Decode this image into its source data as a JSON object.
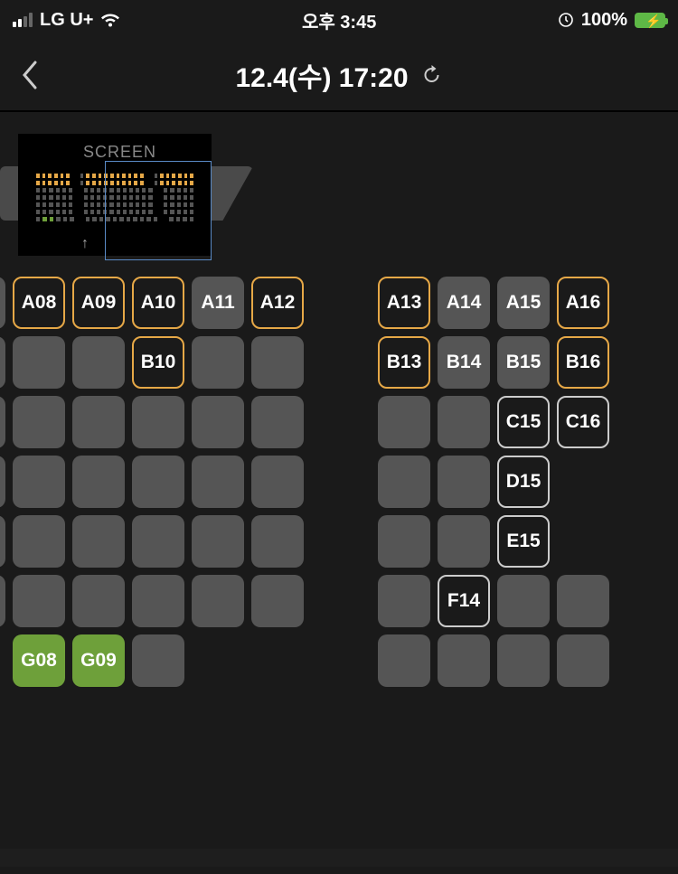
{
  "status": {
    "carrier": "LG U+",
    "time": "오후 3:45",
    "battery_pct": "100%"
  },
  "nav": {
    "title": "12.4(수) 17:20"
  },
  "minimap": {
    "label": "SCREEN",
    "arrow": "↑"
  },
  "colors": {
    "gold": "#e6a847",
    "selected": "#6ea03a",
    "seat_bg": "#555555",
    "white_border": "#cccccc"
  },
  "seats": {
    "rows": [
      [
        {
          "l": "",
          "s": "empty"
        },
        {
          "l": "A08",
          "s": "gold"
        },
        {
          "l": "A09",
          "s": "gold"
        },
        {
          "l": "A10",
          "s": "gold"
        },
        {
          "l": "A11",
          "s": "empty"
        },
        {
          "l": "A12",
          "s": "gold"
        },
        {
          "aisle": true
        },
        {
          "l": "A13",
          "s": "gold"
        },
        {
          "l": "A14",
          "s": "empty"
        },
        {
          "l": "A15",
          "s": "empty"
        },
        {
          "l": "A16",
          "s": "gold"
        }
      ],
      [
        {
          "l": "",
          "s": "empty"
        },
        {
          "l": "",
          "s": "empty"
        },
        {
          "l": "",
          "s": "empty"
        },
        {
          "l": "B10",
          "s": "gold"
        },
        {
          "l": "",
          "s": "empty"
        },
        {
          "l": "",
          "s": "empty"
        },
        {
          "aisle": true
        },
        {
          "l": "B13",
          "s": "gold"
        },
        {
          "l": "B14",
          "s": "empty"
        },
        {
          "l": "B15",
          "s": "empty"
        },
        {
          "l": "B16",
          "s": "gold"
        }
      ],
      [
        {
          "l": "",
          "s": "empty"
        },
        {
          "l": "",
          "s": "empty"
        },
        {
          "l": "",
          "s": "empty"
        },
        {
          "l": "",
          "s": "empty"
        },
        {
          "l": "",
          "s": "empty"
        },
        {
          "l": "",
          "s": "empty"
        },
        {
          "aisle": true
        },
        {
          "l": "",
          "s": "empty"
        },
        {
          "l": "",
          "s": "empty"
        },
        {
          "l": "C15",
          "s": "white"
        },
        {
          "l": "C16",
          "s": "white"
        }
      ],
      [
        {
          "l": "",
          "s": "empty"
        },
        {
          "l": "",
          "s": "empty"
        },
        {
          "l": "",
          "s": "empty"
        },
        {
          "l": "",
          "s": "empty"
        },
        {
          "l": "",
          "s": "empty"
        },
        {
          "l": "",
          "s": "empty"
        },
        {
          "aisle": true
        },
        {
          "l": "",
          "s": "empty"
        },
        {
          "l": "",
          "s": "empty"
        },
        {
          "l": "D15",
          "s": "white"
        },
        {
          "l": "",
          "s": "hidden"
        }
      ],
      [
        {
          "l": "",
          "s": "empty"
        },
        {
          "l": "",
          "s": "empty"
        },
        {
          "l": "",
          "s": "empty"
        },
        {
          "l": "",
          "s": "empty"
        },
        {
          "l": "",
          "s": "empty"
        },
        {
          "l": "",
          "s": "empty"
        },
        {
          "aisle": true
        },
        {
          "l": "",
          "s": "empty"
        },
        {
          "l": "",
          "s": "empty"
        },
        {
          "l": "E15",
          "s": "white"
        },
        {
          "l": "",
          "s": "hidden"
        }
      ],
      [
        {
          "l": "",
          "s": "empty"
        },
        {
          "l": "",
          "s": "empty"
        },
        {
          "l": "",
          "s": "empty"
        },
        {
          "l": "",
          "s": "empty"
        },
        {
          "l": "",
          "s": "empty"
        },
        {
          "l": "",
          "s": "empty"
        },
        {
          "aisle": true
        },
        {
          "l": "",
          "s": "empty"
        },
        {
          "l": "F14",
          "s": "white"
        },
        {
          "l": "",
          "s": "empty"
        },
        {
          "l": "",
          "s": "empty"
        }
      ],
      [
        {
          "l": "",
          "s": "hidden"
        },
        {
          "l": "G08",
          "s": "sel"
        },
        {
          "l": "G09",
          "s": "sel"
        },
        {
          "l": "",
          "s": "empty"
        },
        {
          "l": "",
          "s": "hidden"
        },
        {
          "l": "",
          "s": "hidden"
        },
        {
          "aisle": true
        },
        {
          "l": "",
          "s": "empty"
        },
        {
          "l": "",
          "s": "empty"
        },
        {
          "l": "",
          "s": "empty"
        },
        {
          "l": "",
          "s": "empty"
        }
      ]
    ]
  }
}
